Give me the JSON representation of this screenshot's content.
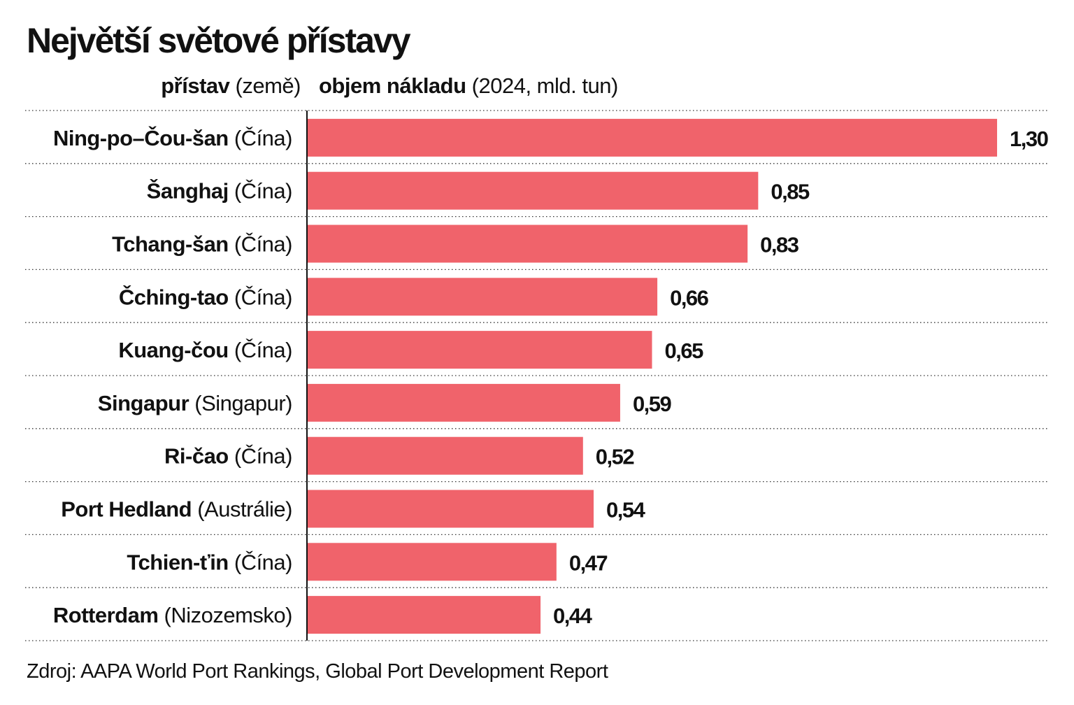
{
  "title": "Největší světové přístavy",
  "header": {
    "left_bold": "přístav",
    "left_regular": "(země)",
    "right_bold": "objem nákladu",
    "right_regular": "(2024, mld. tun)"
  },
  "chart_data": {
    "type": "bar",
    "orientation": "horizontal",
    "title": "Největší světové přístavy",
    "xlabel": "objem nákladu (2024, mld. tun)",
    "ylabel": "přístav (země)",
    "categories": [
      {
        "port": "Ning-po–Čou-šan",
        "country": "(Čína)"
      },
      {
        "port": "Šanghaj",
        "country": "(Čína)"
      },
      {
        "port": "Tchang-šan",
        "country": "(Čína)"
      },
      {
        "port": "Čching-tao",
        "country": "(Čína)"
      },
      {
        "port": "Kuang-čou",
        "country": "(Čína)"
      },
      {
        "port": "Singapur",
        "country": "(Singapur)"
      },
      {
        "port": "Ri-čao",
        "country": "(Čína)"
      },
      {
        "port": "Port Hedland",
        "country": "(Austrálie)"
      },
      {
        "port": "Tchien-ťin",
        "country": "(Čína)"
      },
      {
        "port": "Rotterdam",
        "country": "(Nizozemsko)"
      }
    ],
    "values": [
      1.3,
      0.85,
      0.83,
      0.66,
      0.65,
      0.59,
      0.52,
      0.54,
      0.47,
      0.44
    ],
    "value_labels": [
      "1,30",
      "0,85",
      "0,83",
      "0,66",
      "0,65",
      "0,59",
      "0,52",
      "0,54",
      "0,47",
      "0,44"
    ],
    "xlim": [
      0,
      1.3
    ],
    "grid": false,
    "bar_color": "#f0636b",
    "divider_color": "#333333"
  },
  "source": "Zdroj: AAPA World Port Rankings, Global Port Development Report"
}
